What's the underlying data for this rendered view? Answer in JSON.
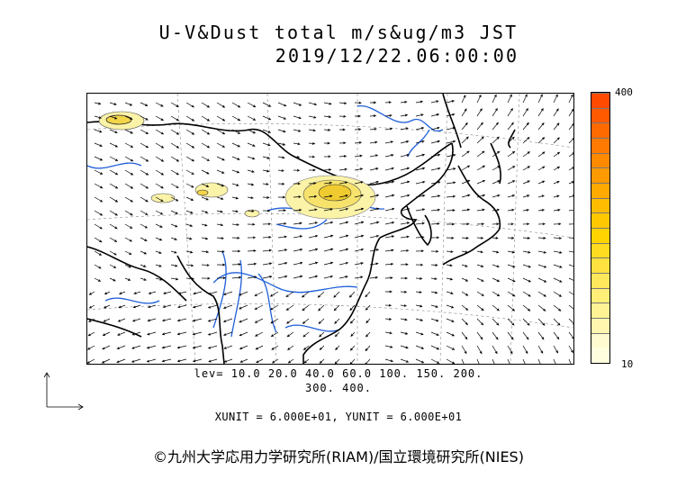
{
  "title": {
    "line1": "U-V&Dust total m/s&ug/m3 JST",
    "line2": "2019/12/22.06:00:00"
  },
  "colorbar": {
    "max_label": "400",
    "min_label": "10",
    "colors": [
      "#ffffe0",
      "#fffad0",
      "#fff6b0",
      "#fff294",
      "#ffee78",
      "#ffe85c",
      "#ffe240",
      "#ffdc20",
      "#ffd400",
      "#ffc800",
      "#ffbc00",
      "#ffaa00",
      "#ff9a00",
      "#ff8a00",
      "#ff7a00",
      "#ff6a00",
      "#ff5a00",
      "#ff4a00"
    ]
  },
  "contour_levels": {
    "line1": "lev= 10.0 20.0 40.0 60.0 100. 150. 200.",
    "line2": "300. 400."
  },
  "units": {
    "text": "XUNIT = 6.000E+01, YUNIT = 6.000E+01"
  },
  "copyright": {
    "text": "©九州大学応用力学研究所(RIAM)/国立環境研究所(NIES)"
  },
  "map": {
    "coast_color": "#000000",
    "river_color": "#1f5fd8",
    "grid_color": "#888888",
    "dust_color_low": "#fbf3a8",
    "dust_color_mid": "#f3d54a"
  }
}
